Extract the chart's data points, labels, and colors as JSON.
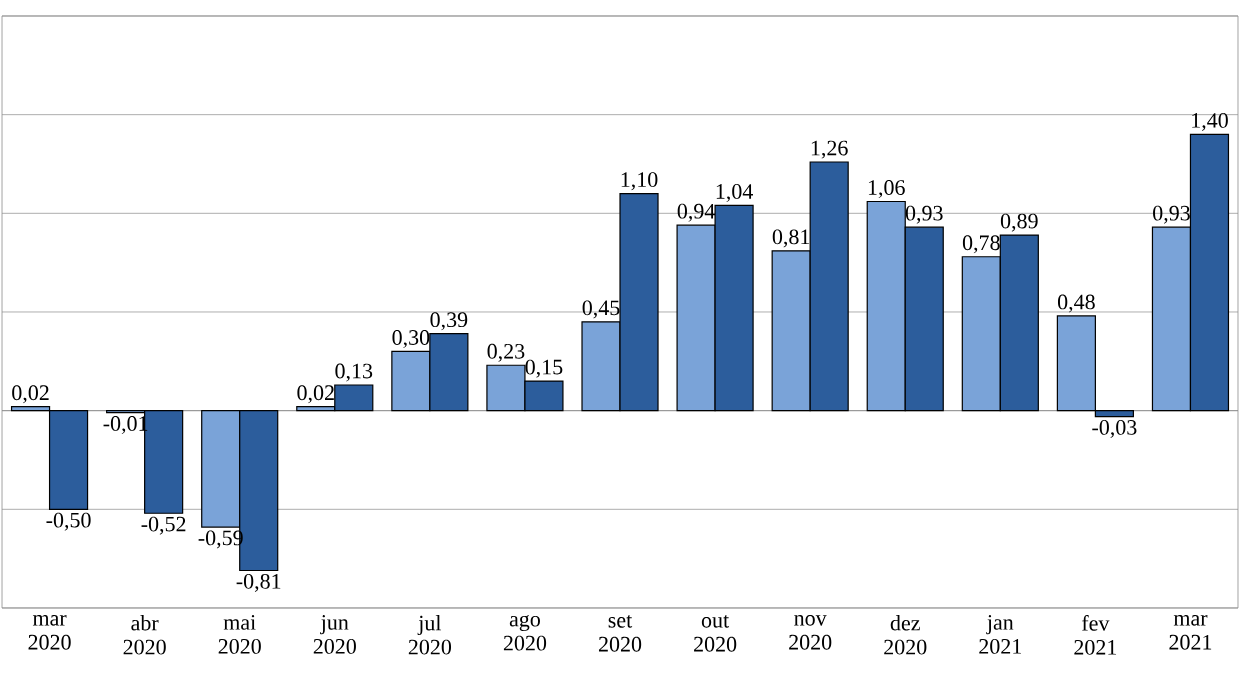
{
  "chart_data": {
    "type": "bar",
    "categories": [
      "mar 2020",
      "abr 2020",
      "mai 2020",
      "jun 2020",
      "jul 2020",
      "ago 2020",
      "set 2020",
      "out 2020",
      "nov 2020",
      "dez 2020",
      "jan 2021",
      "fev 2021",
      "mar 2021"
    ],
    "series": [
      {
        "color": "#7aa3d8",
        "values": [
          0.02,
          -0.01,
          -0.59,
          0.02,
          0.3,
          0.23,
          0.45,
          0.94,
          0.81,
          1.06,
          0.78,
          0.48,
          0.93
        ],
        "value_labels": [
          "0,02",
          "-0,01",
          "-0,59",
          "0,02",
          "0,30",
          "0,23",
          "0,45",
          "0,94",
          "0,81",
          "1,06",
          "0,78",
          "0,48",
          "0,93"
        ]
      },
      {
        "color": "#2c5d9c",
        "values": [
          -0.5,
          -0.52,
          -0.81,
          0.13,
          0.39,
          0.15,
          1.1,
          1.04,
          1.26,
          0.93,
          0.89,
          -0.03,
          1.4
        ],
        "value_labels": [
          "-0,50",
          "-0,52",
          "-0,81",
          "0,13",
          "0,39",
          "0,15",
          "1,10",
          "1,04",
          "1,26",
          "0,93",
          "0,89",
          "-0,03",
          "1,40"
        ]
      }
    ],
    "ylim": [
      -1,
      2
    ],
    "yticks": [
      {
        "value": -1,
        "label": null
      },
      {
        "value": -0.5,
        "label": null
      },
      {
        "value": 0,
        "label": null
      },
      {
        "value": 0.5,
        "label": null
      },
      {
        "value": 1,
        "label": null
      },
      {
        "value": 1.5,
        "label": null
      },
      {
        "value": 2,
        "label": null
      }
    ],
    "grid": "y",
    "tick_labels": "x"
  }
}
